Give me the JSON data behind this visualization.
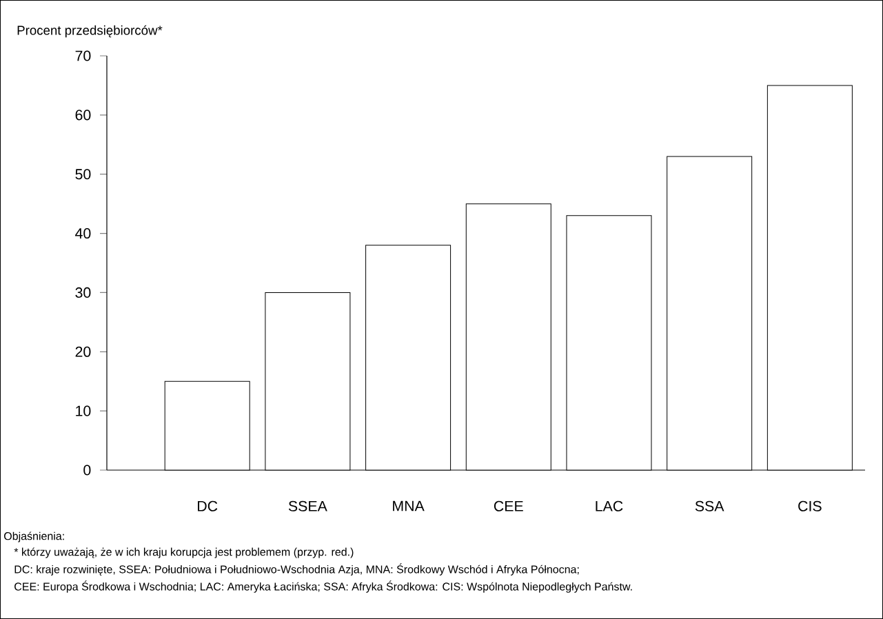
{
  "chart_data": {
    "type": "bar",
    "ylabel": "Procent przedsiębiorców*",
    "categories": [
      "DC",
      "SSEA",
      "MNA",
      "CEE",
      "LAC",
      "SSA",
      "CIS"
    ],
    "values": [
      15,
      30,
      38,
      45,
      43,
      53,
      65
    ],
    "color": "#000000",
    "ylim": [
      0,
      70
    ],
    "yticks": [
      0,
      10,
      20,
      30,
      40,
      50,
      60,
      70
    ],
    "annotations": [
      "Objaśnienia:",
      "* którzy uważają, że w ich kraju korupcja jest problemem (przyp. red.)",
      "DC: kraje rozwinięte, SSEA: Południowa i Południowo-Wschodnia Azja, MNA: Środkowy Wschód i Afryka Północna;",
      "CEE: Europa Środkowa i Wschodnia; LAC: Ameryka Łacińska; SSA: Afryka Środkowa: CIS: Wspólnota Niepodległych Państw."
    ]
  }
}
